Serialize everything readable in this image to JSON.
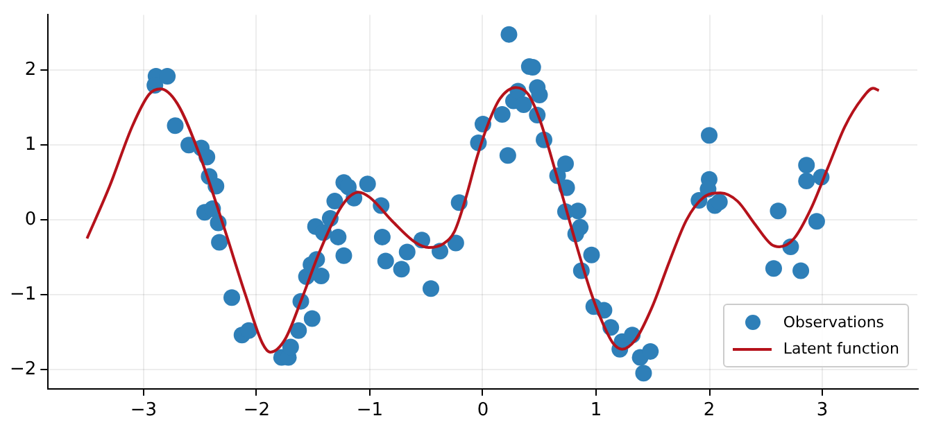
{
  "chart_data": {
    "type": "scatter",
    "xlim": [
      -3.85,
      3.84
    ],
    "ylim": [
      -2.26,
      2.74
    ],
    "xticks": [
      -3,
      -2,
      -1,
      0,
      1,
      2,
      3
    ],
    "yticks": [
      -2,
      -1,
      0,
      1,
      2
    ],
    "grid": true,
    "legend": "bottom right",
    "series": [
      {
        "name": "Observations",
        "marker": "circle",
        "color": "#2e7fb8",
        "x": [
          -2.89,
          -2.9,
          -2.79,
          -2.72,
          -2.6,
          -2.49,
          -2.44,
          -2.42,
          -2.36,
          -2.46,
          -2.39,
          -2.34,
          -2.33,
          -2.22,
          -2.13,
          -2.07,
          -1.78,
          -1.72,
          -1.7,
          -1.63,
          -1.51,
          -1.61,
          -1.56,
          -1.52,
          -1.47,
          -1.43,
          -1.48,
          -1.41,
          -1.35,
          -1.31,
          -1.28,
          -1.23,
          -1.23,
          -1.19,
          -1.14,
          -1.02,
          -0.9,
          -0.89,
          -0.86,
          -0.72,
          -0.67,
          -0.54,
          -0.46,
          -0.38,
          -0.24,
          -0.21,
          -0.04,
          0.0,
          0.17,
          0.23,
          0.22,
          0.27,
          0.31,
          0.36,
          0.41,
          0.44,
          0.48,
          0.5,
          0.48,
          0.54,
          0.66,
          0.73,
          0.74,
          0.73,
          0.84,
          0.86,
          0.82,
          0.96,
          0.87,
          0.98,
          1.07,
          1.13,
          1.23,
          1.21,
          1.32,
          1.39,
          1.48,
          1.42,
          2.0,
          2.0,
          1.99,
          1.91,
          2.05,
          2.09,
          2.61,
          2.72,
          2.57,
          2.81,
          2.95,
          2.86,
          2.86,
          2.99
        ],
        "values": [
          1.92,
          1.8,
          1.92,
          1.26,
          1.0,
          0.96,
          0.84,
          0.58,
          0.45,
          0.1,
          0.15,
          -0.04,
          -0.3,
          -1.04,
          -1.54,
          -1.48,
          -1.84,
          -1.84,
          -1.7,
          -1.48,
          -1.32,
          -1.09,
          -0.76,
          -0.6,
          -0.53,
          -0.75,
          -0.09,
          -0.17,
          0.02,
          0.25,
          -0.23,
          -0.48,
          0.5,
          0.44,
          0.29,
          0.48,
          0.19,
          -0.23,
          -0.55,
          -0.66,
          -0.43,
          -0.27,
          -0.92,
          -0.42,
          -0.31,
          0.23,
          1.03,
          1.28,
          1.41,
          2.48,
          0.86,
          1.59,
          1.72,
          1.54,
          2.05,
          2.04,
          1.77,
          1.67,
          1.4,
          1.07,
          0.59,
          0.75,
          0.43,
          0.11,
          0.12,
          -0.1,
          -0.19,
          -0.47,
          -0.68,
          -1.16,
          -1.21,
          -1.44,
          -1.63,
          -1.73,
          -1.54,
          -1.84,
          -1.76,
          -2.05,
          1.13,
          0.54,
          0.41,
          0.26,
          0.19,
          0.24,
          0.12,
          -0.36,
          -0.65,
          -0.68,
          -0.02,
          0.73,
          0.52,
          0.57
        ]
      },
      {
        "name": "Latent function",
        "type": "line",
        "color": "#b5121b",
        "x": [
          -3.5,
          -3.3,
          -3.1,
          -2.95,
          -2.85,
          -2.7,
          -2.5,
          -2.3,
          -2.1,
          -1.95,
          -1.88,
          -1.75,
          -1.6,
          -1.45,
          -1.3,
          -1.2,
          -1.1,
          -1.0,
          -0.8,
          -0.6,
          -0.48,
          -0.35,
          -0.25,
          -0.15,
          -0.05,
          0.05,
          0.15,
          0.29,
          0.4,
          0.5,
          0.65,
          0.8,
          0.95,
          1.05,
          1.15,
          1.23,
          1.35,
          1.5,
          1.65,
          1.8,
          1.95,
          2.1,
          2.25,
          2.4,
          2.55,
          2.62,
          2.75,
          2.9,
          3.05,
          3.2,
          3.35,
          3.45,
          3.5
        ],
        "values": [
          -0.25,
          0.45,
          1.25,
          1.68,
          1.75,
          1.55,
          0.85,
          -0.05,
          -1.0,
          -1.65,
          -1.77,
          -1.6,
          -1.05,
          -0.45,
          0.05,
          0.28,
          0.37,
          0.3,
          -0.02,
          -0.3,
          -0.37,
          -0.32,
          -0.15,
          0.3,
          0.85,
          1.3,
          1.62,
          1.77,
          1.68,
          1.35,
          0.6,
          -0.2,
          -0.95,
          -1.35,
          -1.65,
          -1.73,
          -1.6,
          -1.15,
          -0.55,
          0.0,
          0.3,
          0.36,
          0.25,
          -0.05,
          -0.33,
          -0.36,
          -0.25,
          0.15,
          0.7,
          1.25,
          1.62,
          1.76,
          1.73
        ]
      }
    ]
  }
}
